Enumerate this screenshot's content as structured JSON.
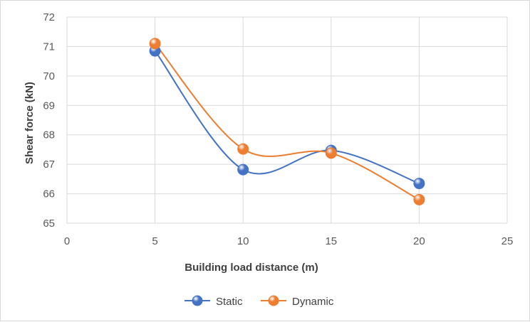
{
  "chart_data": {
    "type": "scatter",
    "title": "",
    "xlabel": "Building load distance (m)",
    "ylabel": "Shear force (kN)",
    "xlim": [
      0,
      25
    ],
    "ylim": [
      65,
      72
    ],
    "xticks": [
      0,
      5,
      10,
      15,
      20,
      25
    ],
    "yticks": [
      65,
      66,
      67,
      68,
      69,
      70,
      71,
      72
    ],
    "grid": true,
    "legend_position": "bottom",
    "series": [
      {
        "name": "Static",
        "color": "#4472c4",
        "x": [
          5,
          10,
          15,
          20
        ],
        "y": [
          70.85,
          66.82,
          67.47,
          66.35
        ]
      },
      {
        "name": "Dynamic",
        "color": "#ed7d31",
        "x": [
          5,
          10,
          15,
          20
        ],
        "y": [
          71.1,
          67.52,
          67.38,
          65.8
        ]
      }
    ]
  }
}
